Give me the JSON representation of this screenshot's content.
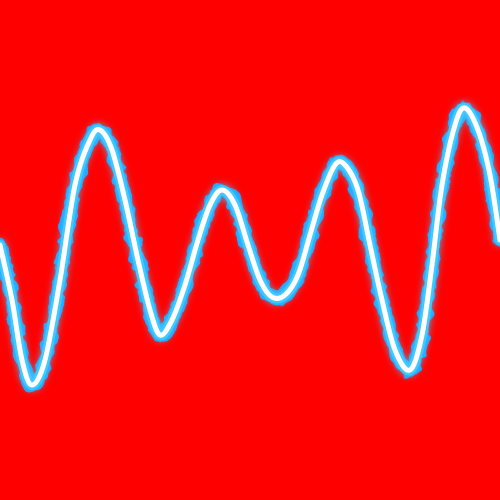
{
  "scene": {
    "description_free": true,
    "background_color": "#ff0000",
    "wave": {
      "core_color": "#ffffff",
      "inner_glow_color": "#bfefff",
      "outer_glow_color": "#3fc8ff",
      "edge_color": "#1f9fff",
      "peaks_and_troughs": 8,
      "style": "glowing electric line"
    }
  }
}
